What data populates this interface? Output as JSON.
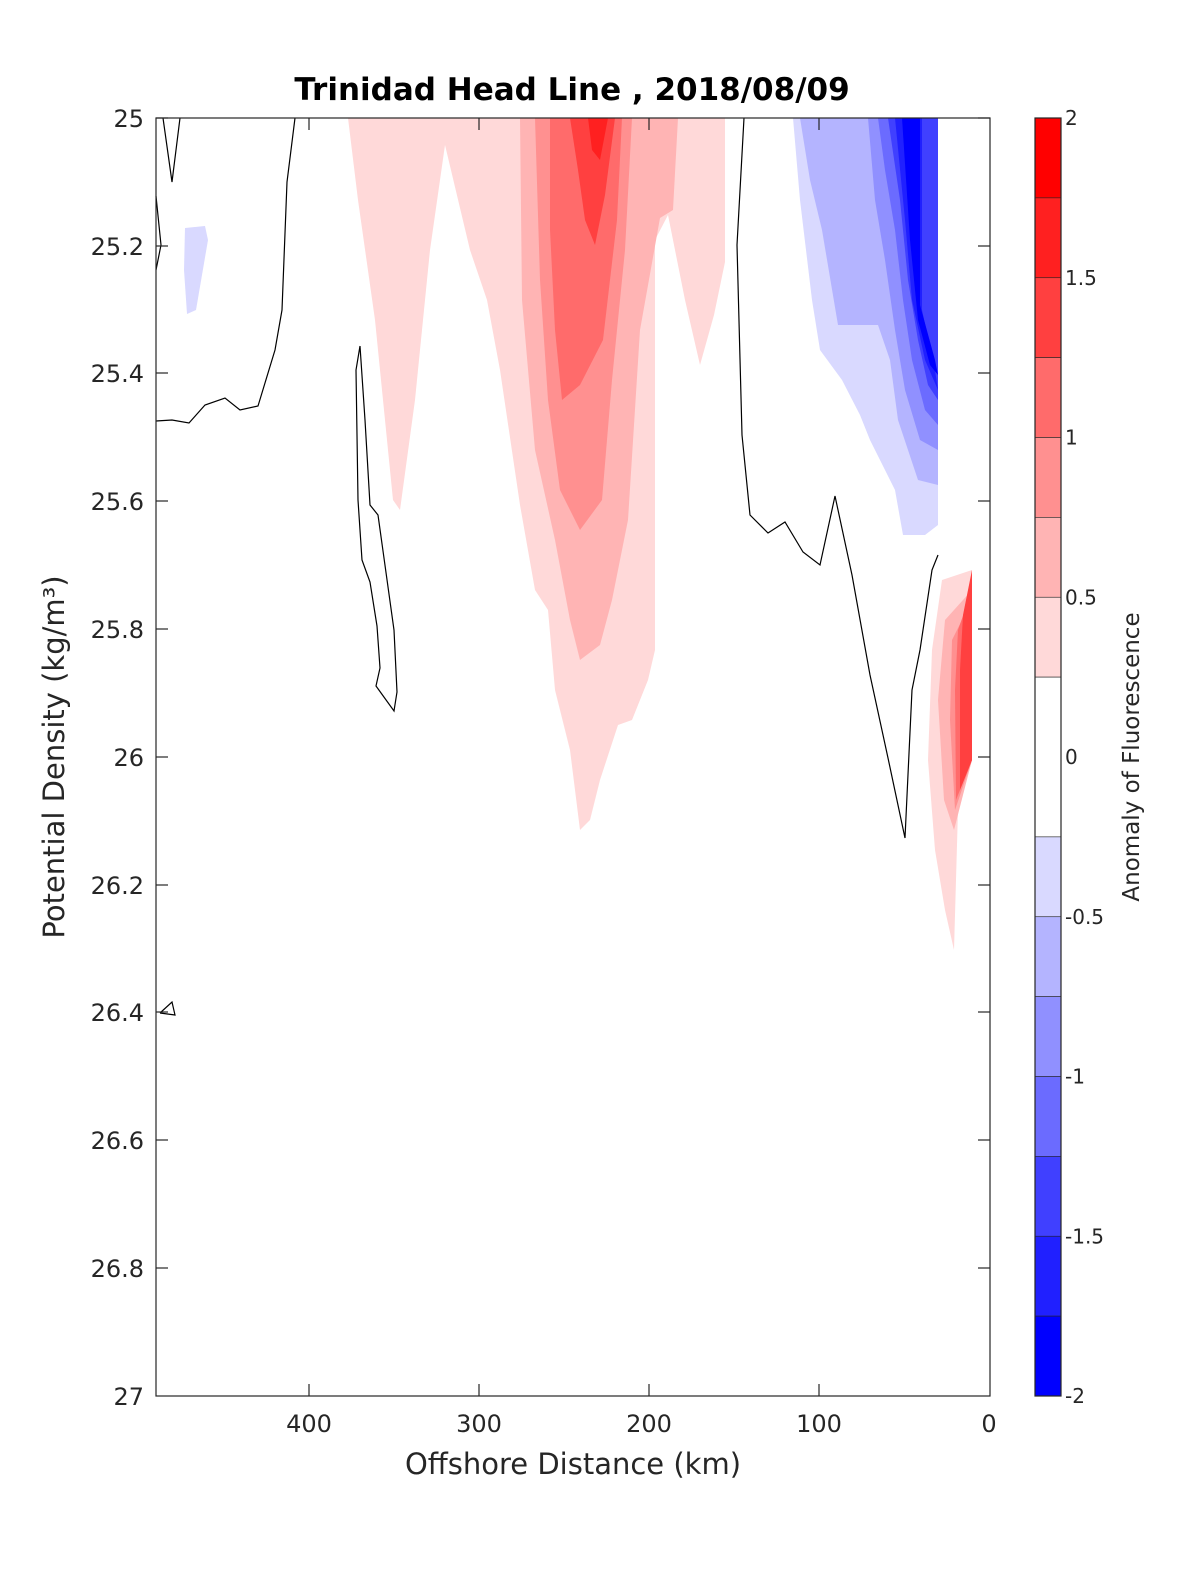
{
  "chart_data": {
    "type": "heatmap",
    "title": "Trinidad Head Line , 2018/08/09",
    "xlabel": "Offshore Distance (km)",
    "ylabel": "Potential Density (kg/m³)",
    "xlim": [
      490,
      0
    ],
    "ylim": [
      25,
      27
    ],
    "y_reversed": true,
    "x_ticks": [
      "400",
      "300",
      "200",
      "100",
      "0"
    ],
    "x_tick_values": [
      400,
      300,
      200,
      100,
      0
    ],
    "y_ticks": [
      "25",
      "25.2",
      "25.4",
      "25.6",
      "25.8",
      "26",
      "26.2",
      "26.4",
      "26.6",
      "26.8",
      "27"
    ],
    "y_tick_values": [
      25,
      25.2,
      25.4,
      25.6,
      25.8,
      26,
      26.2,
      26.4,
      26.6,
      26.8,
      27
    ],
    "colorbar": {
      "label": "Anomaly of Fluorescence",
      "range": [
        -2,
        2
      ],
      "ticks": [
        "2",
        "1.5",
        "1",
        "0.5",
        "0",
        "-0.5",
        "-1",
        "-1.5",
        "-2"
      ],
      "tick_values": [
        2,
        1.5,
        1,
        0.5,
        0,
        -0.5,
        -1,
        -1.5,
        -2
      ],
      "levels": [
        {
          "min": 1.75,
          "max": 2.0,
          "color": "#ff0000"
        },
        {
          "min": 1.5,
          "max": 1.75,
          "color": "#ff2020"
        },
        {
          "min": 1.25,
          "max": 1.5,
          "color": "#ff4040"
        },
        {
          "min": 1.0,
          "max": 1.25,
          "color": "#ff6b6b"
        },
        {
          "min": 0.75,
          "max": 1.0,
          "color": "#ff9090"
        },
        {
          "min": 0.5,
          "max": 0.75,
          "color": "#ffb4b4"
        },
        {
          "min": 0.25,
          "max": 0.5,
          "color": "#ffd9d9"
        },
        {
          "min": -0.25,
          "max": 0.25,
          "color": "#ffffff"
        },
        {
          "min": -0.5,
          "max": -0.25,
          "color": "#d9d9ff"
        },
        {
          "min": -0.75,
          "max": -0.5,
          "color": "#b4b4ff"
        },
        {
          "min": -1.0,
          "max": -0.75,
          "color": "#9090ff"
        },
        {
          "min": -1.25,
          "max": -1.0,
          "color": "#6b6bff"
        },
        {
          "min": -1.5,
          "max": -1.25,
          "color": "#4040ff"
        },
        {
          "min": -1.75,
          "max": -1.5,
          "color": "#2020ff"
        },
        {
          "min": -2.0,
          "max": -1.75,
          "color": "#0000ff"
        }
      ]
    },
    "features": [
      {
        "sign": "positive",
        "peak_anomaly": 1.75,
        "x_range_km": [
          275,
          200
        ],
        "y_range": [
          25.0,
          26.1
        ]
      },
      {
        "sign": "positive",
        "peak_anomaly": 0.5,
        "x_range_km": [
          380,
          155
        ],
        "y_range": [
          25.0,
          25.6
        ]
      },
      {
        "sign": "positive",
        "peak_anomaly": 1.5,
        "x_range_km": [
          35,
          10
        ],
        "y_range": [
          25.7,
          26.3
        ]
      },
      {
        "sign": "negative",
        "peak_anomaly": -2.0,
        "x_range_km": [
          115,
          30
        ],
        "y_range": [
          25.0,
          25.65
        ]
      },
      {
        "sign": "negative",
        "peak_anomaly": -0.5,
        "x_range_km": [
          475,
          460
        ],
        "y_range": [
          25.15,
          25.3
        ]
      }
    ]
  }
}
